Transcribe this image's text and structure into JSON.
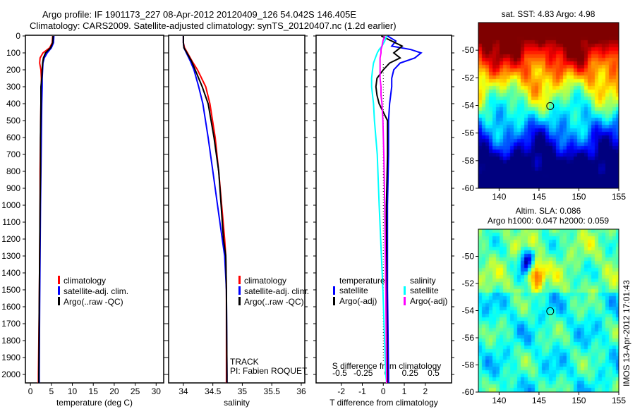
{
  "title": {
    "line1": "Argo profile: IF 1901173_227 08-Apr-2012 20120409_126 54.042S 146.405E",
    "line2": "Climatology: CARS2009. Satellite-adjusted climatology: synTS_20120407.nc (1.2d earlier)"
  },
  "chart_data": [
    {
      "type": "line",
      "name": "temperature",
      "xlabel": "temperature (deg C)",
      "ylabel": "",
      "xlim": [
        -1.2,
        31.8
      ],
      "ylim": [
        2050,
        0
      ],
      "xticks": [
        0,
        5,
        10,
        15,
        20,
        25,
        30
      ],
      "yticks": [
        0,
        100,
        200,
        300,
        400,
        500,
        600,
        700,
        800,
        900,
        1000,
        1100,
        1200,
        1300,
        1400,
        1500,
        1600,
        1700,
        1800,
        1900,
        2000
      ],
      "legend": [
        "climatology",
        "satellite-adj. clim.",
        "Argo(..raw -QC)"
      ],
      "depth": [
        0,
        40,
        70,
        100,
        130,
        160,
        200,
        250,
        300,
        400,
        600,
        800,
        1000,
        1300,
        1600,
        2000,
        2050
      ],
      "series": [
        {
          "name": "climatology",
          "color": "#ff0000",
          "values": [
            5.3,
            5.2,
            4.6,
            3.0,
            2.3,
            2.2,
            2.5,
            2.6,
            2.6,
            2.5,
            2.4,
            2.3,
            2.3,
            2.2,
            2.1,
            1.9,
            1.9
          ]
        },
        {
          "name": "satellite-adj. clim.",
          "color": "#0000ff",
          "values": [
            5.6,
            5.5,
            5.0,
            4.0,
            3.3,
            3.0,
            2.9,
            2.8,
            2.8,
            2.7,
            2.6,
            2.5,
            2.4,
            2.3,
            2.2,
            2.1,
            2.1
          ]
        },
        {
          "name": "Argo(..raw -QC)",
          "color": "#000000",
          "values": [
            5.4,
            5.3,
            4.8,
            3.6,
            3.1,
            2.9,
            2.8,
            2.7,
            2.5,
            2.5,
            2.4,
            2.4,
            2.3,
            2.2,
            2.1,
            2.0,
            2.0
          ]
        }
      ]
    },
    {
      "type": "line",
      "name": "salinity",
      "xlabel": "salinity",
      "xlim": [
        33.75,
        36.06
      ],
      "ylim": [
        2050,
        0
      ],
      "xticks": [
        34,
        34.5,
        35,
        35.5,
        36
      ],
      "xticklabels": [
        "34",
        "34.5",
        "35",
        "35.5",
        "36"
      ],
      "legend": [
        "climatology",
        "satellite-adj. clim.",
        "Argo(..raw -QC)"
      ],
      "annotation": [
        "TRACK",
        "PI: Fabien ROQUET"
      ],
      "depth": [
        0,
        40,
        70,
        100,
        150,
        200,
        300,
        400,
        600,
        800,
        1000,
        1200,
        1300,
        1500,
        2000,
        2050
      ],
      "series": [
        {
          "name": "climatology",
          "color": "#ff0000",
          "values": [
            34.0,
            34.0,
            34.02,
            34.07,
            34.15,
            34.24,
            34.38,
            34.45,
            34.54,
            34.6,
            34.65,
            34.7,
            34.72,
            34.73,
            34.73,
            34.73
          ]
        },
        {
          "name": "satellite-adj. clim.",
          "color": "#0000ff",
          "values": [
            34.0,
            34.0,
            34.01,
            34.05,
            34.12,
            34.18,
            34.26,
            34.33,
            34.42,
            34.5,
            34.58,
            34.66,
            34.7,
            34.73,
            34.74,
            34.74
          ]
        },
        {
          "name": "Argo(..raw -QC)",
          "color": "#000000",
          "values": [
            34.0,
            34.0,
            34.01,
            34.06,
            34.14,
            34.2,
            34.32,
            34.42,
            34.52,
            34.6,
            34.64,
            34.68,
            34.72,
            34.73,
            34.74,
            34.74
          ]
        }
      ]
    },
    {
      "type": "line",
      "name": "difference",
      "xlabel": "T difference from climatology",
      "xlabel2": "S difference from climatology",
      "xlim": [
        -3.2,
        3.25
      ],
      "ylim": [
        2050,
        0
      ],
      "xticks": [
        -2,
        -1,
        0,
        1,
        2
      ],
      "xticks2": [
        -0.5,
        -0.25,
        0,
        0.25,
        0.5
      ],
      "xticklabels2": [
        "-0.5",
        "-0.25",
        "0",
        "0.25",
        "0.5"
      ],
      "legend_t": {
        "title": "temperature",
        "items": [
          "satellite",
          "Argo(-adj)"
        ]
      },
      "legend_s": {
        "title": "salinity",
        "items": [
          "satellite",
          "Argo(-adj)"
        ]
      },
      "depth": [
        0,
        30,
        60,
        80,
        100,
        130,
        160,
        200,
        250,
        300,
        350,
        400,
        500,
        700,
        1000,
        1500,
        2000,
        2050
      ],
      "series": [
        {
          "name": "T satellite",
          "axis": "T",
          "color": "#0000ff",
          "values": [
            0.2,
            0.6,
            0.4,
            1.3,
            1.8,
            1.5,
            0.8,
            0.5,
            0.4,
            0.4,
            0.35,
            0.3,
            0.25,
            0.25,
            0.2,
            0.2,
            0.25,
            0.25
          ]
        },
        {
          "name": "T Argo(-adj)",
          "axis": "T",
          "color": "#000000",
          "values": [
            -0.1,
            0.4,
            0.9,
            0.7,
            0.5,
            0.8,
            0.3,
            0.0,
            -0.3,
            -0.35,
            -0.3,
            -0.2,
            0.2,
            0.2,
            0.15,
            0.15,
            0.2,
            0.2
          ]
        },
        {
          "name": "S satellite",
          "axis": "S",
          "color": "#00ffff",
          "values": [
            0.0,
            -0.02,
            -0.05,
            -0.08,
            -0.1,
            -0.12,
            -0.14,
            -0.15,
            -0.16,
            -0.16,
            -0.15,
            -0.14,
            -0.13,
            -0.1,
            -0.08,
            -0.04,
            -0.01,
            0
          ]
        },
        {
          "name": "S Argo(-adj)",
          "axis": "S",
          "color": "#ff00ff",
          "values": [
            -0.02,
            -0.04,
            -0.05,
            -0.06,
            -0.06,
            -0.07,
            -0.07,
            -0.07,
            -0.07,
            -0.06,
            -0.06,
            -0.05,
            -0.04,
            -0.03,
            -0.02,
            -0.01,
            0,
            0
          ]
        }
      ]
    },
    {
      "type": "heatmap",
      "name": "sst-map",
      "title": "sat. SST: 4.83  Argo: 4.98",
      "xlim": [
        137.4,
        155
      ],
      "ylim": [
        -60,
        -48
      ],
      "xticks": [
        140,
        145,
        150,
        155
      ],
      "yticks": [
        -50,
        -52,
        -54,
        -56,
        -58,
        -60
      ],
      "marker": [
        146.405,
        -54.042
      ]
    },
    {
      "type": "heatmap",
      "name": "sla-map",
      "title": "Altim. SLA: 0.086",
      "subtitle": "Argo h1000: 0.047 h2000: 0.059",
      "xlim": [
        137.4,
        155
      ],
      "ylim": [
        -60,
        -48
      ],
      "xticks": [
        140,
        145,
        150,
        155
      ],
      "yticks": [
        -50,
        -52,
        -54,
        -56,
        -58,
        -60
      ],
      "marker": [
        146.405,
        -54.042
      ],
      "side_label": "IMOS 13-Apr-2012 17:01:43"
    }
  ]
}
